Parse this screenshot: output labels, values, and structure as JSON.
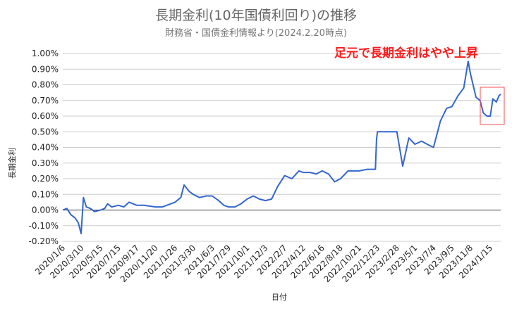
{
  "chart_data": {
    "type": "line",
    "title": "長期金利(10年国債利回り)の推移",
    "subtitle": "財務省・国債金利情報より(2024.2.20時点)",
    "xlabel": "日付",
    "ylabel": "長期金利",
    "annotation": "足元で長期金利はやや上昇",
    "colors": {
      "line": "#3366cc",
      "annotation": "#ff1a1a",
      "grid": "#cccccc"
    },
    "ylim": [
      -0.2,
      1.0
    ],
    "yticks": [
      "-0.20%",
      "-0.10%",
      "0.00%",
      "0.10%",
      "0.20%",
      "0.30%",
      "0.40%",
      "0.50%",
      "0.60%",
      "0.70%",
      "0.80%",
      "0.90%",
      "1.00%"
    ],
    "xticks": [
      "2020/1/6",
      "2020/3/10",
      "2020/5/15",
      "2020/7/15",
      "2020/9/17",
      "2020/11/20",
      "2021/1/26",
      "2021/3/30",
      "2021/6/3",
      "2021/7/29",
      "2021/10/1",
      "2021/12/3",
      "2022/2/7",
      "2022/4/12",
      "2022/6/16",
      "2022/8/18",
      "2022/10/21",
      "2022/12/23",
      "2023/2/28",
      "2023/5/1",
      "2023/7/4",
      "2023/9/5",
      "2023/11/8",
      "2024/1/15"
    ],
    "grid": true,
    "legend": "none",
    "series": [
      {
        "points": [
          [
            "2020/1/6",
            0.0
          ],
          [
            "2020/1/20",
            0.01
          ],
          [
            "2020/2/3",
            -0.03
          ],
          [
            "2020/2/17",
            -0.05
          ],
          [
            "2020/2/28",
            -0.08
          ],
          [
            "2020/3/9",
            -0.15
          ],
          [
            "2020/3/17",
            0.08
          ],
          [
            "2020/3/27",
            0.02
          ],
          [
            "2020/4/10",
            0.01
          ],
          [
            "2020/4/24",
            -0.01
          ],
          [
            "2020/5/15",
            0.0
          ],
          [
            "2020/5/29",
            0.01
          ],
          [
            "2020/6/8",
            0.04
          ],
          [
            "2020/6/22",
            0.02
          ],
          [
            "2020/7/15",
            0.03
          ],
          [
            "2020/8/3",
            0.02
          ],
          [
            "2020/8/21",
            0.05
          ],
          [
            "2020/9/17",
            0.03
          ],
          [
            "2020/10/12",
            0.03
          ],
          [
            "2020/11/20",
            0.02
          ],
          [
            "2020/12/14",
            0.02
          ],
          [
            "2021/1/26",
            0.05
          ],
          [
            "2021/2/15",
            0.08
          ],
          [
            "2021/2/26",
            0.16
          ],
          [
            "2021/3/15",
            0.12
          ],
          [
            "2021/3/30",
            0.1
          ],
          [
            "2021/4/20",
            0.08
          ],
          [
            "2021/5/14",
            0.09
          ],
          [
            "2021/6/3",
            0.09
          ],
          [
            "2021/6/25",
            0.06
          ],
          [
            "2021/7/13",
            0.03
          ],
          [
            "2021/7/29",
            0.02
          ],
          [
            "2021/8/20",
            0.02
          ],
          [
            "2021/9/10",
            0.04
          ],
          [
            "2021/10/1",
            0.07
          ],
          [
            "2021/10/22",
            0.09
          ],
          [
            "2021/11/12",
            0.07
          ],
          [
            "2021/12/3",
            0.06
          ],
          [
            "2021/12/24",
            0.07
          ],
          [
            "2022/1/14",
            0.15
          ],
          [
            "2022/2/7",
            0.22
          ],
          [
            "2022/3/4",
            0.2
          ],
          [
            "2022/3/28",
            0.25
          ],
          [
            "2022/4/12",
            0.24
          ],
          [
            "2022/5/6",
            0.24
          ],
          [
            "2022/5/27",
            0.23
          ],
          [
            "2022/6/16",
            0.25
          ],
          [
            "2022/7/8",
            0.23
          ],
          [
            "2022/7/29",
            0.18
          ],
          [
            "2022/8/18",
            0.2
          ],
          [
            "2022/9/13",
            0.25
          ],
          [
            "2022/10/21",
            0.25
          ],
          [
            "2022/11/18",
            0.26
          ],
          [
            "2022/12/16",
            0.26
          ],
          [
            "2022/12/20",
            0.45
          ],
          [
            "2022/12/23",
            0.5
          ],
          [
            "2023/1/18",
            0.5
          ],
          [
            "2023/2/8",
            0.5
          ],
          [
            "2023/2/28",
            0.5
          ],
          [
            "2023/3/10",
            0.39
          ],
          [
            "2023/3/20",
            0.28
          ],
          [
            "2023/4/10",
            0.46
          ],
          [
            "2023/5/1",
            0.42
          ],
          [
            "2023/5/24",
            0.44
          ],
          [
            "2023/6/12",
            0.42
          ],
          [
            "2023/7/4",
            0.4
          ],
          [
            "2023/7/28",
            0.57
          ],
          [
            "2023/8/18",
            0.65
          ],
          [
            "2023/9/5",
            0.66
          ],
          [
            "2023/9/26",
            0.73
          ],
          [
            "2023/10/16",
            0.78
          ],
          [
            "2023/10/31",
            0.95
          ],
          [
            "2023/11/8",
            0.87
          ],
          [
            "2023/11/27",
            0.72
          ],
          [
            "2023/12/11",
            0.7
          ],
          [
            "2023/12/22",
            0.62
          ],
          [
            "2024/1/4",
            0.6
          ],
          [
            "2024/1/15",
            0.6
          ],
          [
            "2024/1/24",
            0.71
          ],
          [
            "2024/2/5",
            0.69
          ],
          [
            "2024/2/14",
            0.73
          ],
          [
            "2024/2/20",
            0.74
          ]
        ]
      }
    ]
  }
}
